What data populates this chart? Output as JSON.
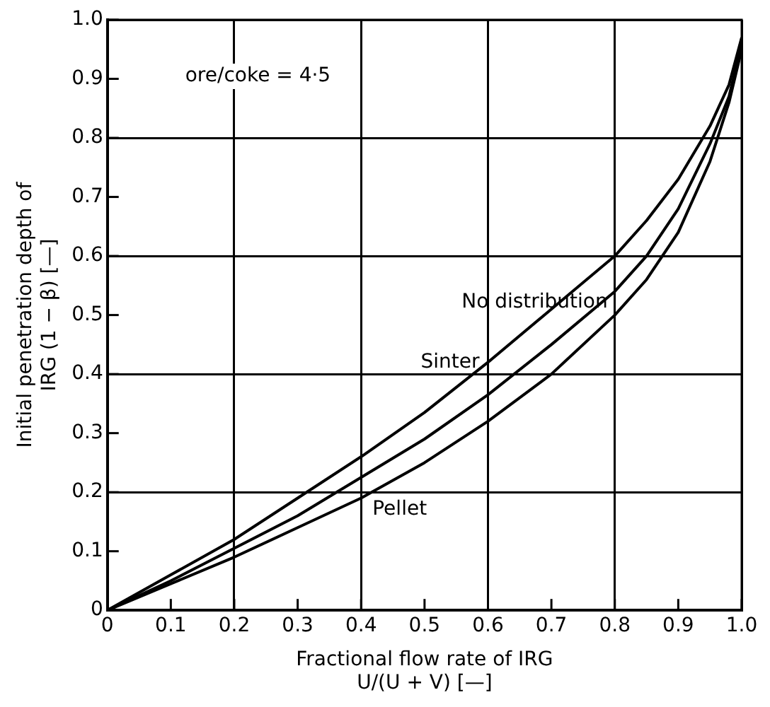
{
  "chart_data": {
    "type": "line",
    "xlabel": "Fractional flow rate of IRG\nU/(U + V) [—]",
    "ylabel": "Initial penetration depth of\nIRG (1 − β) [—]",
    "annotations": [
      "ore/coke = 4·5"
    ],
    "x": [
      0,
      0.1,
      0.2,
      0.3,
      0.4,
      0.5,
      0.6,
      0.7,
      0.8,
      0.85,
      0.9,
      0.95,
      0.98,
      1.0
    ],
    "series": [
      {
        "name": "Sinter",
        "color": "#000000",
        "values": [
          0,
          0.06,
          0.12,
          0.19,
          0.26,
          0.335,
          0.42,
          0.51,
          0.6,
          0.66,
          0.73,
          0.82,
          0.89,
          0.97
        ]
      },
      {
        "name": "No distribution",
        "color": "#000000",
        "values": [
          0,
          0.05,
          0.105,
          0.16,
          0.225,
          0.29,
          0.365,
          0.45,
          0.54,
          0.6,
          0.68,
          0.79,
          0.87,
          0.96
        ]
      },
      {
        "name": "Pellet",
        "color": "#000000",
        "values": [
          0,
          0.045,
          0.09,
          0.14,
          0.19,
          0.25,
          0.32,
          0.4,
          0.5,
          0.56,
          0.64,
          0.76,
          0.86,
          0.95
        ]
      }
    ],
    "xlim": [
      0,
      1
    ],
    "ylim": [
      0,
      1
    ],
    "xticks": [
      0,
      0.1,
      0.2,
      0.3,
      0.4,
      0.5,
      0.6,
      0.7,
      0.8,
      0.9,
      {
        "value": 1,
        "label": "1.0"
      }
    ],
    "yticks": [
      0,
      0.1,
      0.2,
      0.3,
      0.4,
      0.5,
      0.6,
      0.7,
      0.8,
      0.9,
      {
        "value": 1,
        "label": "1.0"
      }
    ],
    "grid": true,
    "legend": false,
    "marker": "none",
    "line_style": "solid"
  }
}
